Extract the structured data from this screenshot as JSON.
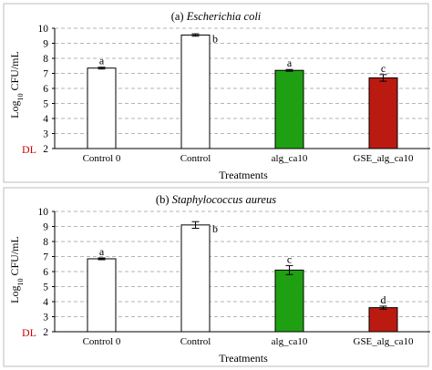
{
  "chart_data": [
    {
      "type": "bar",
      "panel_label": "(a)",
      "title_species": "Escherichia coli",
      "categories": [
        "Control 0",
        "Control",
        "alg_ca10",
        "GSE_alg_ca10"
      ],
      "values": [
        7.35,
        9.55,
        7.2,
        6.7
      ],
      "errors": [
        0.06,
        0.08,
        0.06,
        0.22
      ],
      "significance": [
        "a",
        "b",
        "a",
        "c"
      ],
      "bar_colors": [
        "#ffffff",
        "#ffffff",
        "#1fa012",
        "#bb1a10"
      ],
      "xlabel": "Treatments",
      "ylabel_prefix": "Log",
      "ylabel_sub": "10",
      "ylabel_suffix": " CFU/mL",
      "ylim": [
        2,
        10
      ],
      "yticks": [
        "2",
        "3",
        "4",
        "5",
        "6",
        "7",
        "8",
        "9",
        "10"
      ],
      "dl_label": "DL",
      "grid": true
    },
    {
      "type": "bar",
      "panel_label": "(b)",
      "title_species": "Staphylococcus aureus",
      "categories": [
        "Control 0",
        "Control",
        "alg_ca10",
        "GSE_alg_ca10"
      ],
      "values": [
        6.85,
        9.1,
        6.1,
        3.6
      ],
      "errors": [
        0.06,
        0.22,
        0.3,
        0.1
      ],
      "significance": [
        "a",
        "b",
        "c",
        "d"
      ],
      "bar_colors": [
        "#ffffff",
        "#ffffff",
        "#1fa012",
        "#bb1a10"
      ],
      "xlabel": "Treatments",
      "ylabel_prefix": "Log",
      "ylabel_sub": "10",
      "ylabel_suffix": " CFU/mL",
      "ylim": [
        2,
        10
      ],
      "yticks": [
        "2",
        "3",
        "4",
        "5",
        "6",
        "7",
        "8",
        "9",
        "10"
      ],
      "dl_label": "DL",
      "grid": true
    }
  ]
}
